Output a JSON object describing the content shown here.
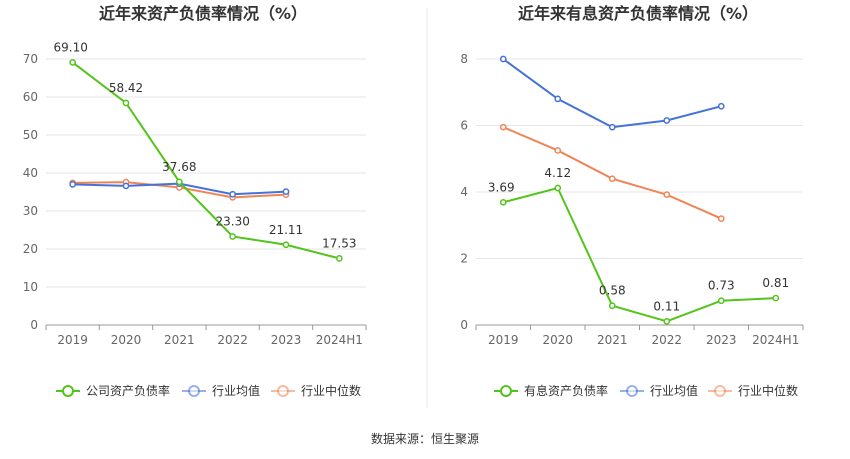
{
  "source_text": "数据来源：恒生聚源",
  "chart_data": [
    {
      "type": "line",
      "title": "近年来资产负债率情况（%）",
      "categories": [
        "2019",
        "2020",
        "2021",
        "2022",
        "2023",
        "2024H1"
      ],
      "ylim": [
        0,
        70
      ],
      "yticks": [
        0,
        10,
        20,
        30,
        40,
        50,
        60,
        70
      ],
      "grid": true,
      "legend_position": "bottom",
      "series": [
        {
          "name": "公司资产负债率",
          "color": "#52c41a",
          "values": [
            69.1,
            58.42,
            37.68,
            23.3,
            21.11,
            17.53
          ],
          "labels": [
            "69.10",
            "58.42",
            "37.68",
            "23.30",
            "21.11",
            "17.53"
          ]
        },
        {
          "name": "行业均值",
          "color": "#4472d8",
          "values": [
            37.0,
            36.6,
            37.2,
            34.4,
            35.1,
            null
          ]
        },
        {
          "name": "行业中位数",
          "color": "#f08456",
          "values": [
            37.4,
            37.6,
            36.2,
            33.6,
            34.3,
            null
          ]
        }
      ]
    },
    {
      "type": "line",
      "title": "近年来有息资产负债率情况（%）",
      "categories": [
        "2019",
        "2020",
        "2021",
        "2022",
        "2023",
        "2024H1"
      ],
      "ylim": [
        0,
        8
      ],
      "yticks": [
        0,
        2,
        4,
        6,
        8
      ],
      "grid": true,
      "legend_position": "bottom",
      "series": [
        {
          "name": "有息资产负债率",
          "color": "#52c41a",
          "values": [
            3.69,
            4.12,
            0.58,
            0.11,
            0.73,
            0.81
          ],
          "labels": [
            "3.69",
            "4.12",
            "0.58",
            "0.11",
            "0.73",
            "0.81"
          ]
        },
        {
          "name": "行业均值",
          "color": "#4472d8",
          "values": [
            8.0,
            6.8,
            5.95,
            6.15,
            6.58,
            null
          ]
        },
        {
          "name": "行业中位数",
          "color": "#f08456",
          "values": [
            5.95,
            5.25,
            4.4,
            3.92,
            3.2,
            null
          ]
        }
      ]
    }
  ]
}
